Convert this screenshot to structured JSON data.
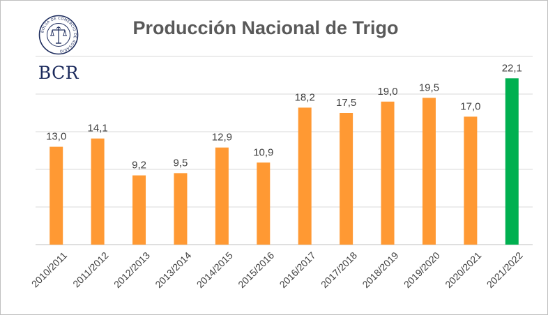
{
  "logo": {
    "text": "BCR",
    "seal_text": "BOLSA DE COMERCIO DE ROSARIO"
  },
  "chart_data": {
    "type": "bar",
    "title": "Producción Nacional de Trigo",
    "xlabel": "",
    "ylabel": "",
    "ylim": [
      0,
      25
    ],
    "grid": true,
    "legend": "none",
    "categories": [
      "2010/2011",
      "2011/2012",
      "2012/2013",
      "2013/2014",
      "2014/2015",
      "2015/2016",
      "2016/2017",
      "2017/2018",
      "2018/2019",
      "2019/2020",
      "2020/2021",
      "2021/2022"
    ],
    "values": [
      13.0,
      14.1,
      9.2,
      9.5,
      12.9,
      10.9,
      18.2,
      17.5,
      19.0,
      19.5,
      17.0,
      22.1
    ],
    "data_labels": [
      "13,0",
      "14,1",
      "9,2",
      "9,5",
      "12,9",
      "10,9",
      "18,2",
      "17,5",
      "19,0",
      "19,5",
      "17,0",
      "22,1"
    ],
    "colors": {
      "default": "#ff9933",
      "highlight": "#00b050",
      "highlight_index": 11,
      "grid": "#d9d9d9",
      "axis": "#bfbfbf",
      "text": "#404040"
    }
  }
}
